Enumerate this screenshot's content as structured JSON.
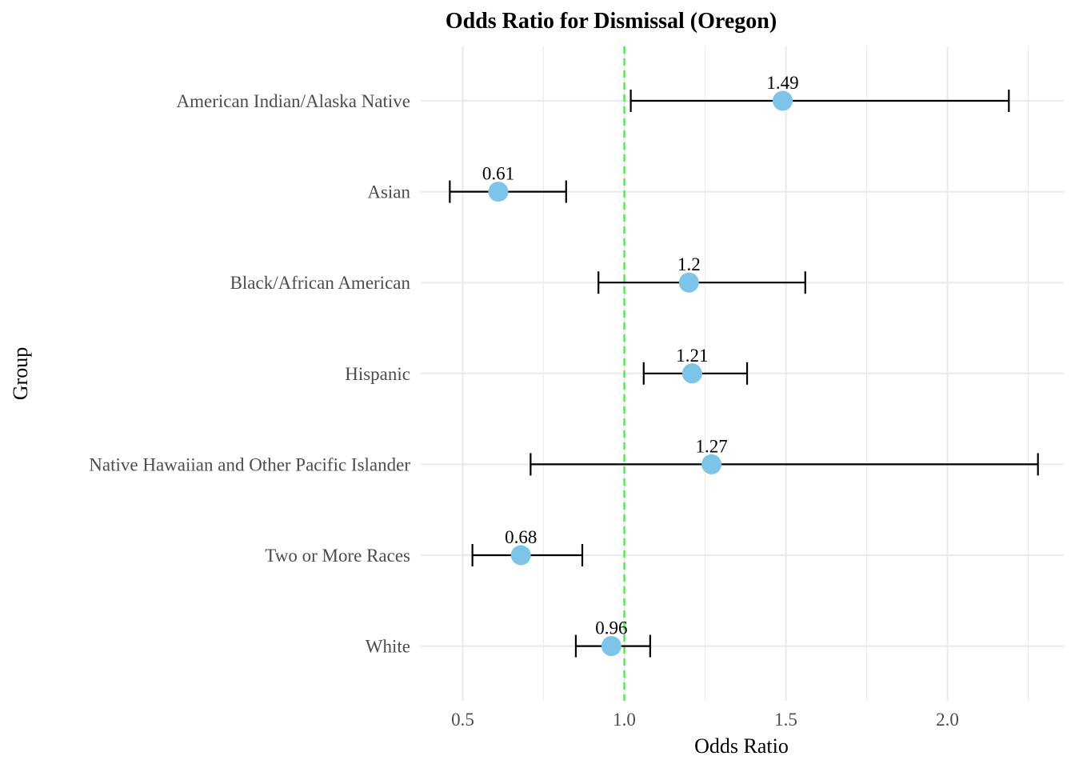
{
  "chart_data": {
    "type": "scatter",
    "subtype": "forest-plot",
    "title": "Odds Ratio for Dismissal (Oregon)",
    "xlabel": "Odds Ratio",
    "ylabel": "Group",
    "xlim": [
      0.37,
      2.36
    ],
    "x_ticks": [
      0.5,
      1.0,
      1.5,
      2.0
    ],
    "x_tick_labels": [
      "0.5",
      "1.0",
      "1.5",
      "2.0"
    ],
    "x_minor_ticks": [
      0.75,
      1.25,
      1.75,
      2.25
    ],
    "reference_line": {
      "x": 1.0,
      "style": "dashed",
      "color": "#33ff33"
    },
    "grid": true,
    "legend": "none",
    "point_color": "#7cc4e8",
    "categories": [
      "American Indian/Alaska Native",
      "Asian",
      "Black/African American",
      "Hispanic",
      "Native Hawaiian and Other Pacific Islander",
      "Two or More Races",
      "White"
    ],
    "series": [
      {
        "odds_ratio": [
          1.49,
          0.61,
          1.2,
          1.21,
          1.27,
          0.68,
          0.96
        ],
        "ci_lower": [
          1.02,
          0.46,
          0.92,
          1.06,
          0.71,
          0.53,
          0.85
        ],
        "ci_upper": [
          2.19,
          0.82,
          1.56,
          1.38,
          2.28,
          0.87,
          1.08
        ],
        "labels": [
          "1.49",
          "0.61",
          "1.2",
          "1.21",
          "1.27",
          "0.68",
          "0.96"
        ]
      }
    ]
  }
}
